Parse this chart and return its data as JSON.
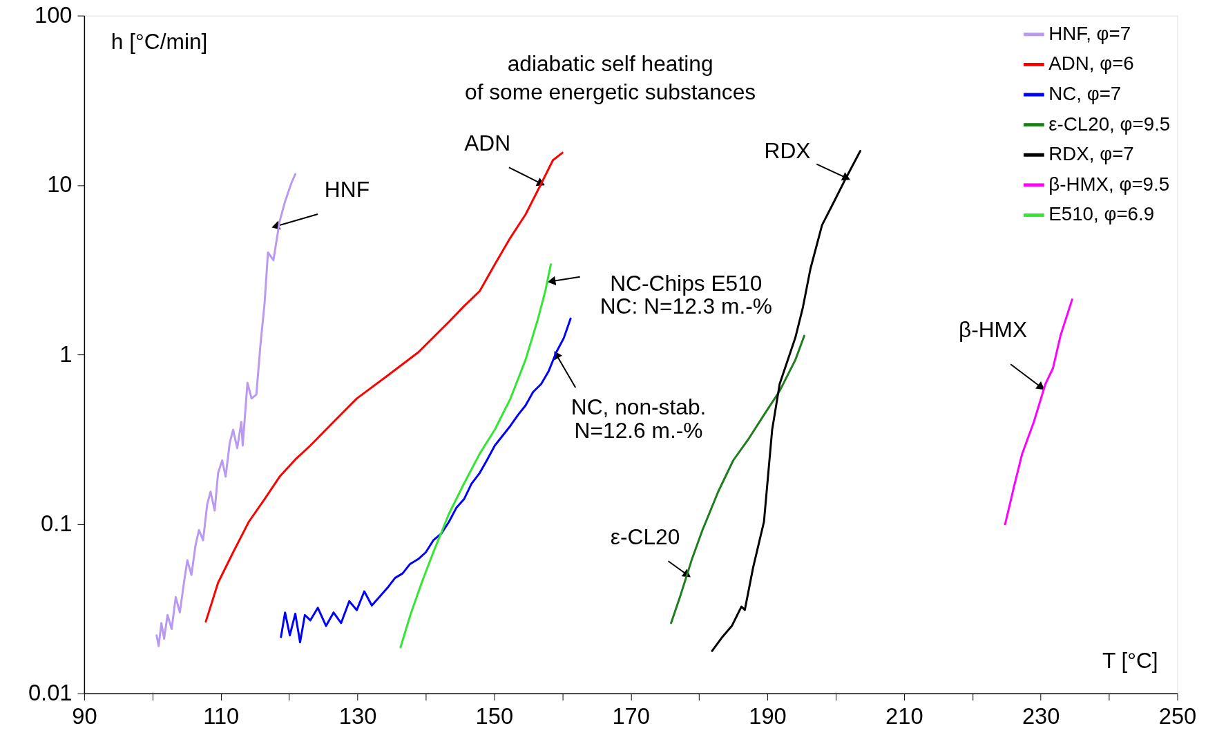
{
  "chart_data": {
    "type": "line",
    "title": "adiabatic self heating\nof some energetic substances",
    "xlabel": "T  [°C]",
    "ylabel": "h [°C/min]",
    "xlim": [
      90,
      250
    ],
    "xticks": [
      90,
      {
        "value": 100,
        "label": null
      },
      110,
      {
        "value": 120,
        "label": null
      },
      130,
      {
        "value": 140,
        "label": null
      },
      150,
      {
        "value": 160,
        "label": null
      },
      170,
      {
        "value": 180,
        "label": null
      },
      190,
      {
        "value": 200,
        "label": null
      },
      210,
      {
        "value": 220,
        "label": null
      },
      230,
      {
        "value": 240,
        "label": null
      },
      250
    ],
    "ylim": [
      0.01,
      100
    ],
    "yticks": [
      0.01,
      0.1,
      1,
      10,
      100
    ],
    "log": "y",
    "grid": false,
    "legend": "top right",
    "marker": "none",
    "line_style": "solid",
    "series": [
      {
        "name": "HNF, φ=7",
        "color": "#b99af0",
        "x": [
          100.6,
          100.9,
          101.3,
          101.7,
          102.2,
          102.8,
          103.4,
          104.0,
          104.6,
          105.1,
          105.7,
          106.3,
          106.8,
          107.4,
          108.0,
          108.5,
          109.1,
          109.6,
          110.2,
          110.7,
          111.3,
          111.8,
          112.4,
          113.0,
          113.2,
          113.9,
          114.5,
          115.2,
          115.8,
          116.4,
          116.9,
          117.7,
          118.6,
          119.4,
          120.3,
          120.9
        ],
        "values": [
          0.022,
          0.019,
          0.026,
          0.021,
          0.029,
          0.024,
          0.037,
          0.03,
          0.045,
          0.061,
          0.05,
          0.075,
          0.092,
          0.08,
          0.13,
          0.155,
          0.12,
          0.2,
          0.237,
          0.19,
          0.3,
          0.36,
          0.28,
          0.4,
          0.29,
          0.68,
          0.55,
          0.58,
          1.14,
          2.0,
          4.0,
          3.6,
          6.1,
          8.0,
          10.2,
          11.6
        ]
      },
      {
        "name": "ADN, φ=6",
        "color": "#ff0000",
        "x": [
          107.8,
          109.6,
          111.8,
          114.1,
          116.4,
          118.6,
          120.9,
          123.1,
          126.5,
          129.9,
          134.4,
          138.9,
          143.4,
          145.6,
          147.9,
          150.1,
          152.4,
          154.6,
          156.9,
          158.6,
          160.0
        ],
        "values": [
          0.0265,
          0.045,
          0.068,
          0.103,
          0.14,
          0.19,
          0.24,
          0.29,
          0.4,
          0.55,
          0.75,
          1.03,
          1.56,
          1.93,
          2.37,
          3.4,
          4.9,
          6.7,
          10.2,
          14.0,
          15.5
        ]
      },
      {
        "name": "NC, φ=7",
        "color": "#0000ff",
        "x": [
          118.8,
          119.4,
          120.1,
          120.9,
          121.6,
          122.3,
          123.1,
          124.2,
          125.4,
          126.5,
          127.6,
          128.8,
          129.9,
          131.0,
          132.1,
          133.2,
          134.4,
          135.5,
          136.6,
          137.7,
          138.9,
          140.0,
          141.1,
          142.3,
          143.4,
          144.5,
          145.6,
          146.7,
          147.9,
          149.0,
          150.1,
          151.2,
          152.4,
          153.5,
          154.6,
          155.7,
          156.9,
          158.0,
          159.1,
          160.2,
          161.2
        ],
        "values": [
          0.0215,
          0.03,
          0.022,
          0.0295,
          0.02,
          0.029,
          0.027,
          0.032,
          0.025,
          0.03,
          0.026,
          0.035,
          0.031,
          0.04,
          0.033,
          0.037,
          0.042,
          0.048,
          0.051,
          0.058,
          0.062,
          0.068,
          0.08,
          0.088,
          0.103,
          0.125,
          0.14,
          0.173,
          0.2,
          0.24,
          0.29,
          0.33,
          0.38,
          0.44,
          0.5,
          0.6,
          0.67,
          0.8,
          1.03,
          1.25,
          1.63
        ]
      },
      {
        "name": "ε-CL20, φ=9.5",
        "color": "#1e7d1e",
        "x": [
          175.9,
          177.2,
          178.9,
          180.5,
          182.8,
          185.0,
          187.3,
          189.5,
          191.8,
          194.1,
          195.4
        ],
        "values": [
          0.026,
          0.037,
          0.061,
          0.092,
          0.155,
          0.237,
          0.32,
          0.44,
          0.61,
          0.93,
          1.29
        ]
      },
      {
        "name": "RDX,  φ=7",
        "color": "#000000",
        "x": [
          181.9,
          183.4,
          184.8,
          186.2,
          186.7,
          187.9,
          189.5,
          190.7,
          191.8,
          194.1,
          195.2,
          196.3,
          198.0,
          199.7,
          201.4,
          203.6
        ],
        "values": [
          0.0178,
          0.0215,
          0.025,
          0.0325,
          0.0311,
          0.055,
          0.103,
          0.36,
          0.67,
          1.26,
          1.9,
          3.2,
          5.8,
          7.9,
          10.8,
          15.9
        ]
      },
      {
        "name": "β-HMX, φ=9.5",
        "color": "#ff00ff",
        "x": [
          224.8,
          226.2,
          227.3,
          229.0,
          230.7,
          231.8,
          232.9,
          234.6
        ],
        "values": [
          0.0996,
          0.173,
          0.26,
          0.4,
          0.67,
          0.83,
          1.29,
          2.11
        ]
      },
      {
        "name": "E510, φ=6.9",
        "color": "#33e633",
        "x": [
          136.3,
          137.8,
          139.4,
          141.1,
          143.4,
          145.6,
          147.9,
          150.1,
          152.4,
          154.6,
          156.3,
          157.5,
          158.3
        ],
        "values": [
          0.0187,
          0.0295,
          0.045,
          0.068,
          0.115,
          0.173,
          0.26,
          0.36,
          0.55,
          0.93,
          1.56,
          2.37,
          3.4
        ]
      }
    ],
    "annotations": [
      {
        "text": "HNF",
        "x": 118.0,
        "y": 5.7
      },
      {
        "text": "ADN",
        "x": 156.9,
        "y": 10.2
      },
      {
        "text": "RDX",
        "x": 201.6,
        "y": 11.0
      },
      {
        "text": "NC-Chips E510\nNC: N=12.3 m.-%",
        "x": 158.4,
        "y": 2.7
      },
      {
        "text": "NC, non-stab.\nN=12.6 m.-%",
        "x": 159.1,
        "y": 1.0
      },
      {
        "text": "ε-CL20",
        "x": 178.3,
        "y": 0.05
      },
      {
        "text": "β-HMX",
        "x": 230.1,
        "y": 0.64
      }
    ]
  }
}
